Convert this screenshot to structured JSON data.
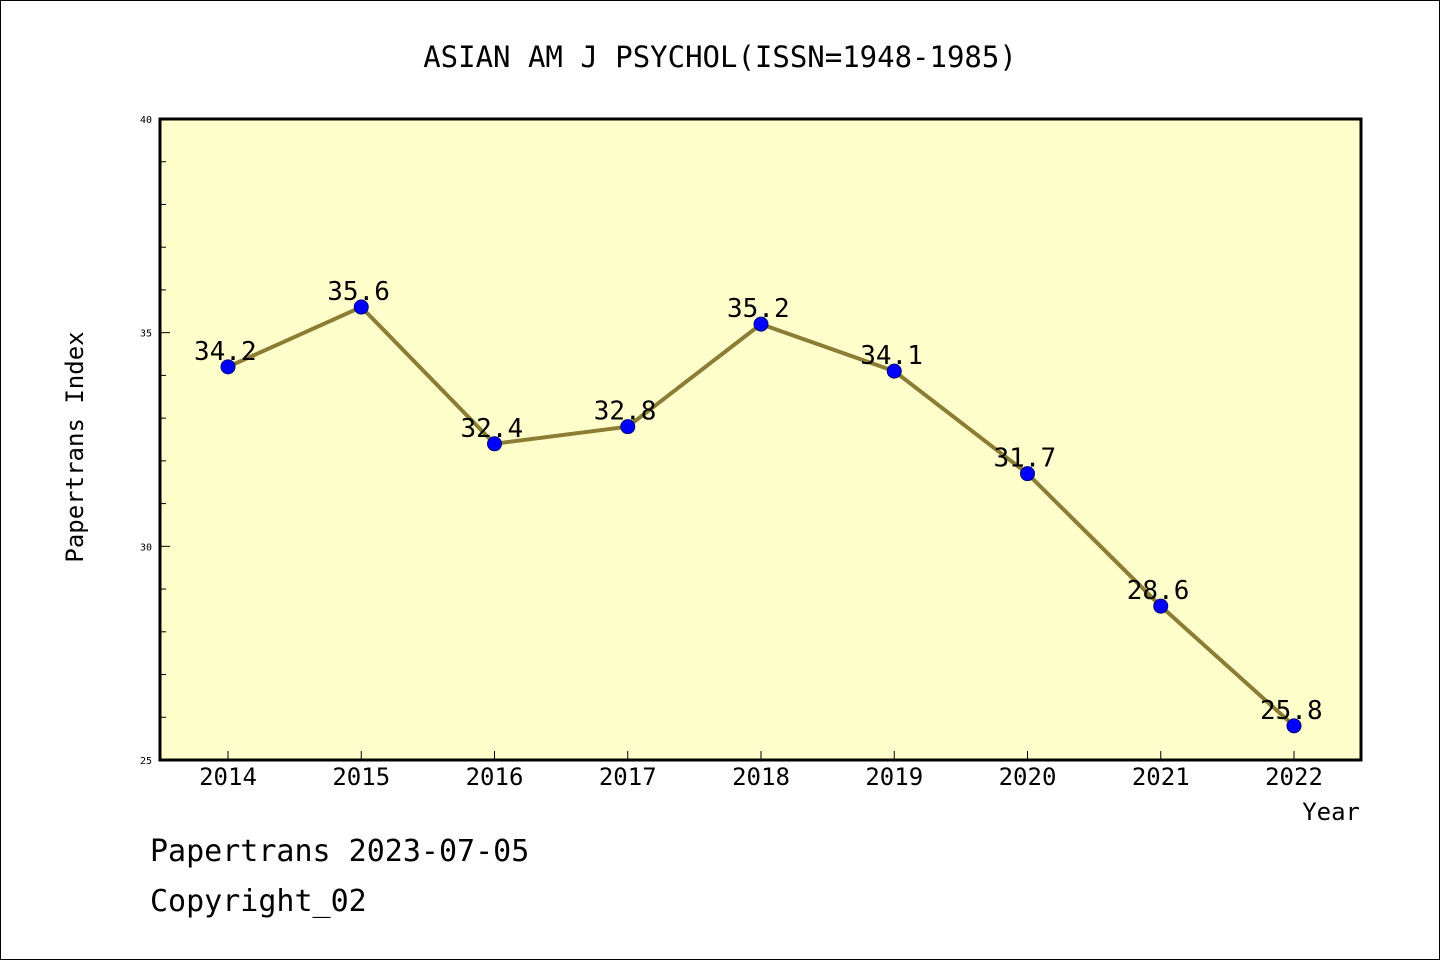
{
  "chart_data": {
    "type": "line",
    "title": "ASIAN AM J PSYCHOL(ISSN=1948-1985)",
    "xlabel": "Year",
    "ylabel": "Papertrans Index",
    "categories": [
      "2014",
      "2015",
      "2016",
      "2017",
      "2018",
      "2019",
      "2020",
      "2021",
      "2022"
    ],
    "series": [
      {
        "values": [
          34.2,
          35.6,
          32.4,
          32.8,
          35.2,
          34.1,
          31.7,
          28.6,
          25.8
        ],
        "data_labels": [
          "34.2",
          "35.6",
          "32.4",
          "32.8",
          "35.2",
          "34.1",
          "31.7",
          "28.6",
          "25.8"
        ]
      }
    ],
    "ylim": [
      25,
      40
    ],
    "yticks": [
      25,
      30,
      35,
      40
    ],
    "ytick_labels": [
      "25",
      "30",
      "35",
      "40"
    ],
    "y_minor_step": 1,
    "grid": false,
    "colors": {
      "plot_background": "#ffffcc",
      "line": "#8b7d34",
      "marker_fill": "#0000ff",
      "marker_edge": "#000080"
    }
  },
  "footer": {
    "line1": "Papertrans 2023-07-05",
    "line2": "Copyright_02"
  }
}
